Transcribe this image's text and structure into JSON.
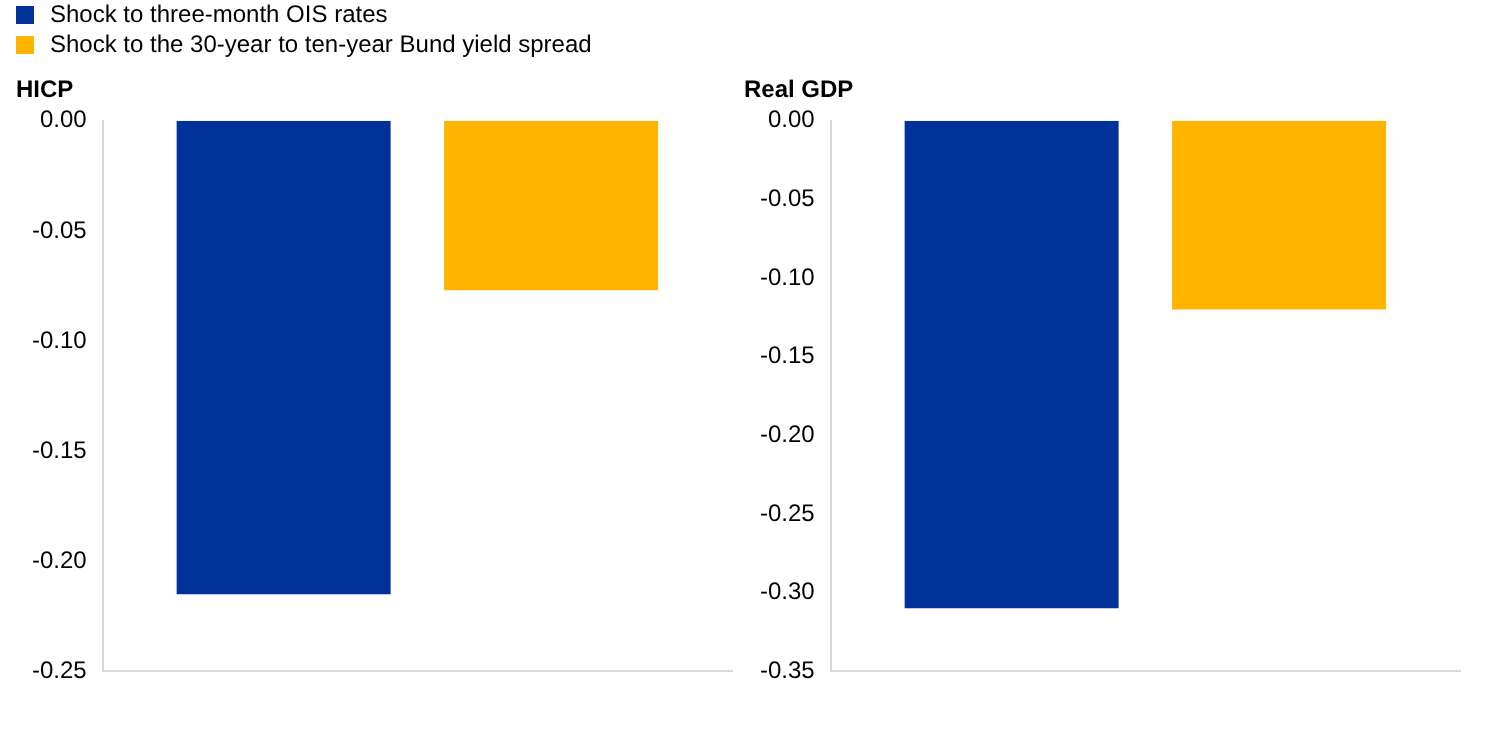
{
  "chart_data": [
    {
      "type": "bar",
      "title": "HICP",
      "categories": [
        null
      ],
      "ylim": [
        -0.25,
        0
      ],
      "yticks": [
        {
          "value": -0.25,
          "label": "-0.25"
        },
        {
          "value": -0.2,
          "label": "-0.20"
        },
        {
          "value": -0.15,
          "label": "-0.15"
        },
        {
          "value": -0.1,
          "label": "-0.10"
        },
        {
          "value": -0.05,
          "label": "-0.05"
        },
        {
          "value": 0,
          "label": "0.00"
        }
      ],
      "legend": "top left",
      "series": [
        {
          "name": "Shock to three-month OIS rates",
          "color": "#003299",
          "values": [
            -0.215
          ]
        },
        {
          "name": "Shock to the 30-year to ten-year Bund yield spread",
          "color": "#ffb400",
          "values": [
            -0.077
          ]
        }
      ]
    },
    {
      "type": "bar",
      "title": "Real GDP",
      "categories": [
        null
      ],
      "ylim": [
        -0.35,
        0
      ],
      "yticks": [
        {
          "value": -0.35,
          "label": "-0.35"
        },
        {
          "value": -0.3,
          "label": "-0.30"
        },
        {
          "value": -0.25,
          "label": "-0.25"
        },
        {
          "value": -0.2,
          "label": "-0.20"
        },
        {
          "value": -0.15,
          "label": "-0.15"
        },
        {
          "value": -0.1,
          "label": "-0.10"
        },
        {
          "value": -0.05,
          "label": "-0.05"
        },
        {
          "value": 0,
          "label": "0.00"
        }
      ],
      "series": [
        {
          "color": "#003299",
          "values": [
            -0.31
          ]
        },
        {
          "color": "#ffb400",
          "values": [
            -0.12
          ]
        }
      ]
    }
  ]
}
